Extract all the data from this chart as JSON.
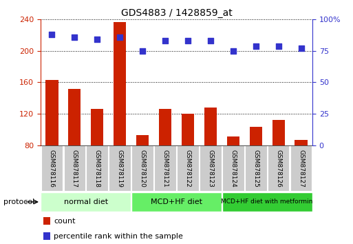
{
  "title": "GDS4883 / 1428859_at",
  "samples": [
    "GSM878116",
    "GSM878117",
    "GSM878118",
    "GSM878119",
    "GSM878120",
    "GSM878121",
    "GSM878122",
    "GSM878123",
    "GSM878124",
    "GSM878125",
    "GSM878126",
    "GSM878127"
  ],
  "counts": [
    163,
    152,
    126,
    237,
    93,
    126,
    120,
    128,
    91,
    103,
    112,
    87
  ],
  "percentile_ranks": [
    88,
    86,
    84,
    86,
    75,
    83,
    83,
    83,
    75,
    79,
    79,
    77
  ],
  "ylim_left": [
    80,
    240
  ],
  "ylim_right": [
    0,
    100
  ],
  "yticks_left": [
    80,
    120,
    160,
    200,
    240
  ],
  "yticks_right": [
    0,
    25,
    50,
    75,
    100
  ],
  "bar_color": "#cc2200",
  "dot_color": "#3333cc",
  "bar_width": 0.55,
  "dot_size": 28,
  "groups": [
    {
      "label": "normal diet",
      "start": 0,
      "end": 4,
      "color": "#ccffcc"
    },
    {
      "label": "MCD+HF diet",
      "start": 4,
      "end": 8,
      "color": "#66ee66"
    },
    {
      "label": "MCD+HF diet with metformin",
      "start": 8,
      "end": 12,
      "color": "#33cc33"
    }
  ],
  "protocol_label": "protocol",
  "legend_items": [
    {
      "label": "count",
      "color": "#cc2200"
    },
    {
      "label": "percentile rank within the sample",
      "color": "#3333cc"
    }
  ],
  "tick_bg_color": "#cccccc",
  "grid_color": "#000000",
  "fig_bg": "#ffffff"
}
